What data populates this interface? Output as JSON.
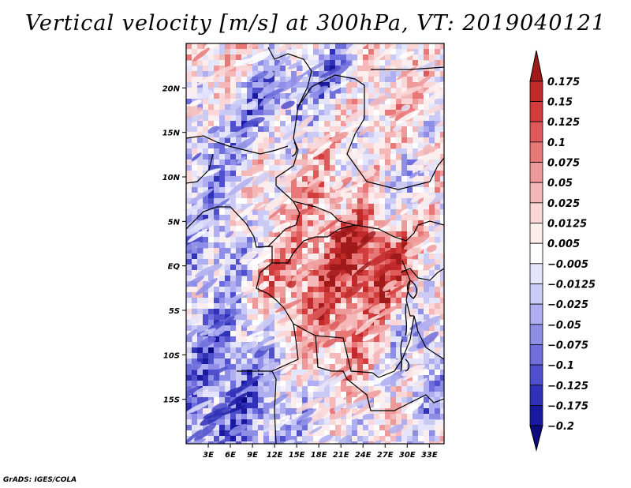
{
  "title": "Vertical velocity [m/s] at 300hPa, VT: 2019040121",
  "footer": "GrADS: IGES/COLA",
  "map": {
    "lon_range": [
      0,
      35
    ],
    "lat_range": [
      -20,
      25
    ],
    "lat_ticks": [
      {
        "value": 20,
        "label": "20N"
      },
      {
        "value": 15,
        "label": "15N"
      },
      {
        "value": 10,
        "label": "10N"
      },
      {
        "value": 5,
        "label": "5N"
      },
      {
        "value": 0,
        "label": "EQ"
      },
      {
        "value": -5,
        "label": "5S"
      },
      {
        "value": -10,
        "label": "10S"
      },
      {
        "value": -15,
        "label": "15S"
      }
    ],
    "lon_ticks": [
      {
        "value": 3,
        "label": "3E"
      },
      {
        "value": 6,
        "label": "6E"
      },
      {
        "value": 9,
        "label": "9E"
      },
      {
        "value": 12,
        "label": "12E"
      },
      {
        "value": 15,
        "label": "15E"
      },
      {
        "value": 18,
        "label": "18E"
      },
      {
        "value": 21,
        "label": "21E"
      },
      {
        "value": 24,
        "label": "24E"
      },
      {
        "value": 27,
        "label": "27E"
      },
      {
        "value": 30,
        "label": "30E"
      },
      {
        "value": 33,
        "label": "33E"
      }
    ]
  },
  "colorbar": {
    "levels": [
      "0.175",
      "0.15",
      "0.125",
      "0.1",
      "0.075",
      "0.05",
      "0.025",
      "0.0125",
      "0.005",
      "−0.005",
      "−0.0125",
      "−0.025",
      "−0.05",
      "−0.075",
      "−0.1",
      "−0.125",
      "−0.175",
      "−0.2"
    ],
    "colors": [
      "#a01a1a",
      "#c02a2a",
      "#d23c3c",
      "#de5a5a",
      "#e87878",
      "#ef9a9a",
      "#f5b8b8",
      "#fad6d6",
      "#fdeeee",
      "#ffffff",
      "#e4e4fb",
      "#cacaf5",
      "#aeaef0",
      "#8e8ee6",
      "#6e6edc",
      "#5050cc",
      "#3030b8",
      "#1a1aa0",
      "#0c0c80"
    ]
  }
}
